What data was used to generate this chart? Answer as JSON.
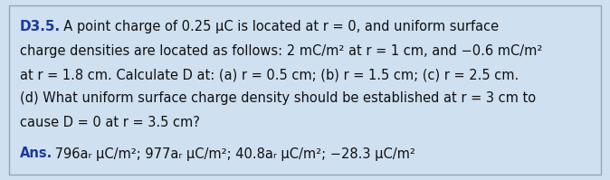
{
  "background_color": "#cfe0f0",
  "border_color": "#8aaabb",
  "title_label": "D3.5.",
  "title_color": "#1a3a9c",
  "body_color": "#111111",
  "ans_label_color": "#1a3a9c",
  "line1_title": "D3.5.",
  "line1_body": "  A point charge of 0.25 μC is located at r = 0, and uniform surface",
  "line2": "charge densities are located as follows: 2 mC/m² at r = 1 cm, and −0.6 mC/m²",
  "line3": "at r = 1.8 cm. Calculate D at: (a) r = 0.5 cm; (b) r = 1.5 cm; (c) r = 2.5 cm.",
  "line4": "(d) What uniform surface charge density should be established at r = 3 cm to",
  "line5": "cause D = 0 at r = 3.5 cm?",
  "ans_label": "Ans.",
  "ans_body": " 796aᵣ μC/m²; 977aᵣ μC/m²; 40.8aᵣ μC/m²; −28.3 μC/m²",
  "body_fontsize": 10.5,
  "title_fontsize": 11.0,
  "ans_fontsize": 10.5,
  "fig_width": 6.74,
  "fig_height": 1.99,
  "dpi": 100
}
